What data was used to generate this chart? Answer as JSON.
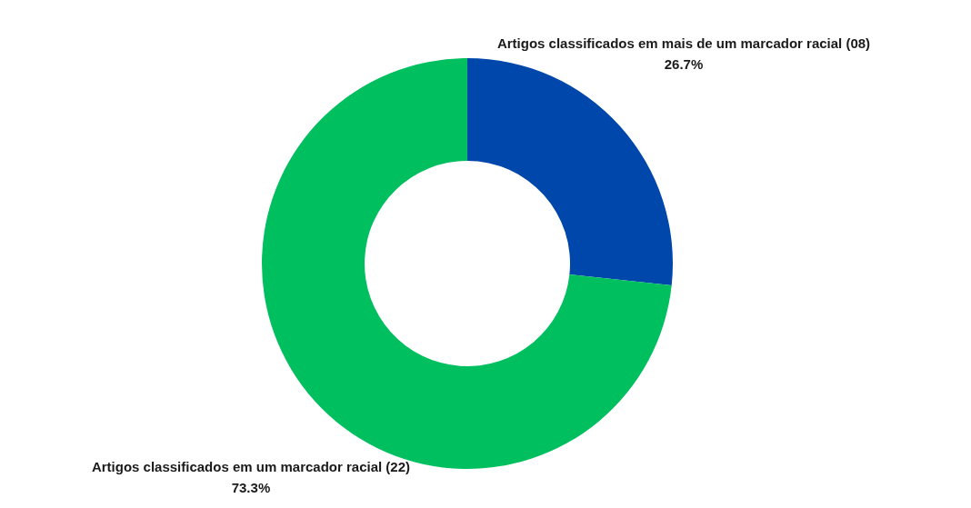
{
  "chart_data": {
    "type": "donut",
    "categories": [
      "Artigos classificados em mais de um marcador racial (08)",
      "Artigos classificados em um marcador racial (22)"
    ],
    "values": [
      26.7,
      73.3
    ],
    "colors": [
      "#0047ab",
      "#00bf5f"
    ],
    "value_labels": [
      "26.7%",
      "73.3%"
    ]
  }
}
